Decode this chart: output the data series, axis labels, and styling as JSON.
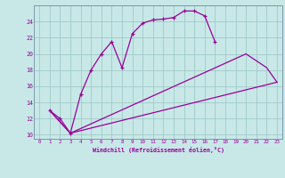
{
  "background_color": "#c8e8e8",
  "grid_color": "#a0c8c8",
  "line_color": "#990099",
  "marker": "+",
  "xlabel": "Windchill (Refroidissement éolien,°C)",
  "xlim": [
    -0.5,
    23.5
  ],
  "ylim": [
    9.5,
    26.0
  ],
  "yticks": [
    10,
    12,
    14,
    16,
    18,
    20,
    22,
    24
  ],
  "xticks": [
    0,
    1,
    2,
    3,
    4,
    5,
    6,
    7,
    8,
    9,
    10,
    11,
    12,
    13,
    14,
    15,
    16,
    17,
    18,
    19,
    20,
    21,
    22,
    23
  ],
  "curve1_x": [
    1,
    2,
    3,
    4,
    5,
    6,
    7,
    8,
    9,
    10,
    11,
    12,
    13,
    14,
    15,
    16,
    17
  ],
  "curve1_y": [
    13.0,
    12.0,
    10.2,
    15.0,
    18.0,
    20.0,
    21.5,
    18.3,
    22.5,
    23.8,
    24.2,
    24.3,
    24.5,
    25.3,
    25.3,
    24.7,
    21.5
  ],
  "curve2_x": [
    1,
    3,
    20,
    22,
    23
  ],
  "curve2_y": [
    13.0,
    10.2,
    20.0,
    18.3,
    16.5
  ],
  "curve3_x": [
    1,
    3,
    23
  ],
  "curve3_y": [
    13.0,
    10.2,
    16.5
  ]
}
